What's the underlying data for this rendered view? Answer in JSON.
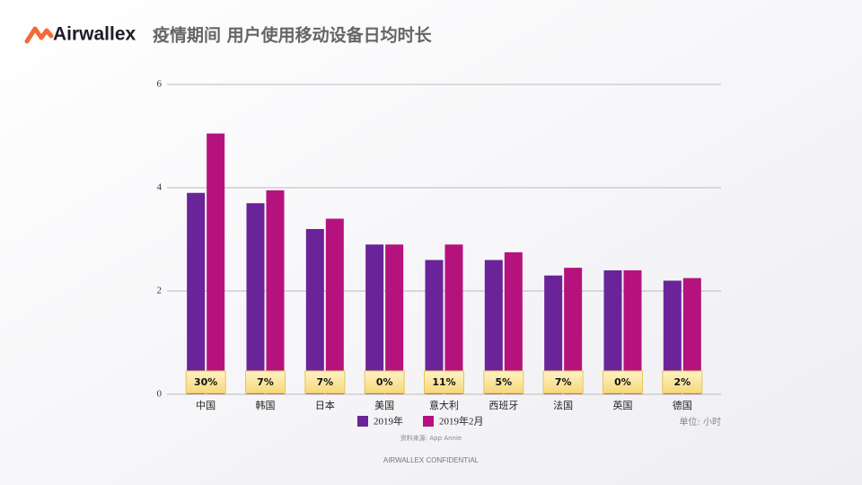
{
  "brand": "Airwallex",
  "footer": "AIRWALLEX CONFIDENTIAL",
  "chart_data": {
    "type": "bar",
    "title": "疫情期间 用户使用移动设备日均时长",
    "unit_note": "单位: 小时",
    "source": "资料来源: App Annie",
    "categories": [
      "中国",
      "韩国",
      "日本",
      "美国",
      "意大利",
      "西班牙",
      "法国",
      "英国",
      "德国"
    ],
    "series": [
      {
        "name": "2019年",
        "color": "#6a2399",
        "values": [
          3.9,
          3.7,
          3.2,
          2.9,
          2.6,
          2.6,
          2.3,
          2.4,
          2.2
        ]
      },
      {
        "name": "2019年2月",
        "color": "#b5127e",
        "values": [
          5.05,
          3.95,
          3.4,
          2.9,
          2.9,
          2.75,
          2.45,
          2.4,
          2.25
        ]
      }
    ],
    "growth": {
      "values": [
        30,
        7,
        7,
        0,
        11,
        5,
        7,
        0,
        2
      ],
      "value_labels": [
        "30%",
        "7%",
        "7%",
        "0%",
        "11%",
        "5%",
        "7%",
        "0%",
        "2%"
      ]
    },
    "ylim": [
      0,
      6
    ],
    "yticks": [
      0,
      2,
      4,
      6
    ],
    "grid": true,
    "legend": "bottom"
  }
}
